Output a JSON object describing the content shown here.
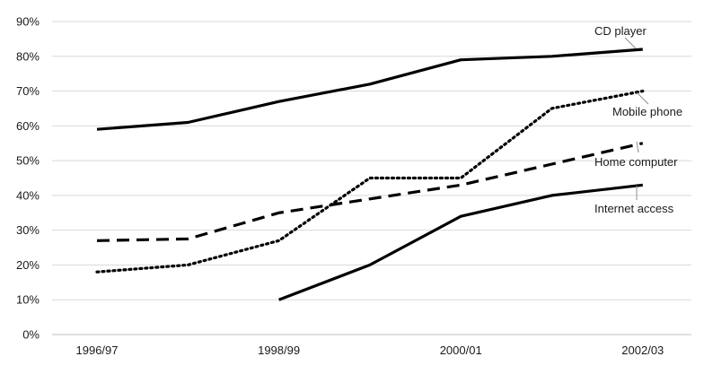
{
  "chart_data": {
    "type": "line",
    "x": [
      "1996/97",
      "1997/98",
      "1998/99",
      "1999/00",
      "2000/01",
      "2001/02",
      "2002/03"
    ],
    "x_tick_labels": [
      "1996/97",
      "1998/99",
      "2000/01",
      "2002/03"
    ],
    "ylim": [
      0,
      90
    ],
    "y_tick_labels": [
      "0%",
      "10%",
      "20%",
      "30%",
      "40%",
      "50%",
      "60%",
      "70%",
      "80%",
      "90%"
    ],
    "grid": true,
    "legend": "inline labels at right end of lines",
    "series": [
      {
        "name": "CD player",
        "style": "solid",
        "values": [
          59,
          61,
          67,
          72,
          79,
          80,
          82
        ]
      },
      {
        "name": "Mobile phone",
        "style": "dotted",
        "values": [
          18,
          20,
          27,
          45,
          45,
          65,
          70
        ]
      },
      {
        "name": "Home computer",
        "style": "dashed",
        "values": [
          27,
          27.5,
          35,
          39,
          43,
          49,
          55
        ]
      },
      {
        "name": "Internet access",
        "style": "solid",
        "values": [
          null,
          null,
          10,
          20,
          34,
          40,
          43
        ]
      }
    ]
  },
  "colors": {
    "line": "#000000",
    "grid": "#d9d9d9",
    "text": "#1a1a1a"
  }
}
